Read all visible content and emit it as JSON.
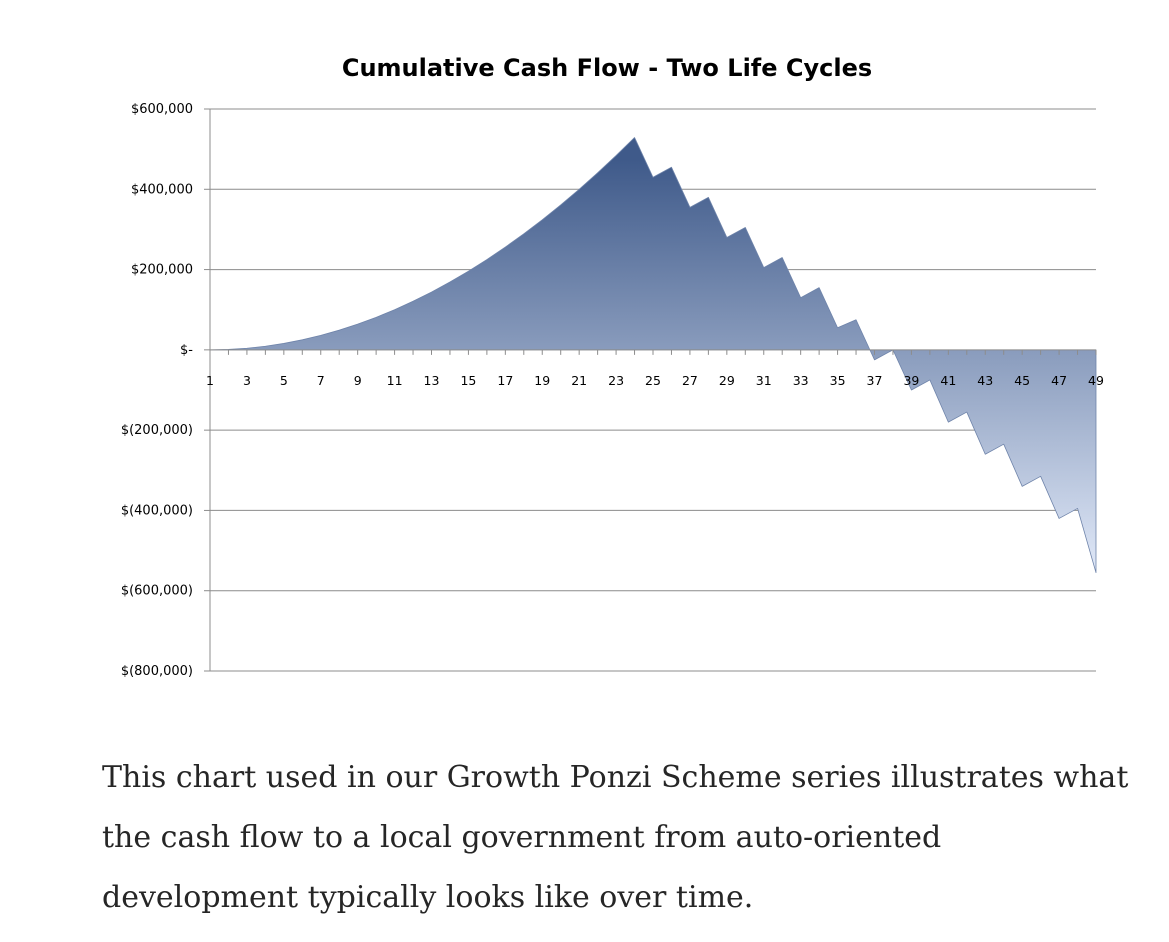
{
  "chart_data": {
    "type": "area",
    "title": "Cumulative Cash Flow - Two Life Cycles",
    "xlabel": "",
    "ylabel": "",
    "x": [
      1,
      2,
      3,
      4,
      5,
      6,
      7,
      8,
      9,
      10,
      11,
      12,
      13,
      14,
      15,
      16,
      17,
      18,
      19,
      20,
      21,
      22,
      23,
      24,
      25,
      26,
      27,
      28,
      29,
      30,
      31,
      32,
      33,
      34,
      35,
      36,
      37,
      38,
      39,
      40,
      41,
      42,
      43,
      44,
      45,
      46,
      47,
      48,
      49
    ],
    "series": [
      {
        "values": [
          0,
          1000,
          4000,
          9000,
          16000,
          25000,
          36000,
          49000,
          64000,
          81000,
          100000,
          121000,
          144000,
          169000,
          196000,
          225000,
          256000,
          289000,
          324000,
          361000,
          400000,
          441000,
          484000,
          529000,
          430000,
          455000,
          355000,
          380000,
          280000,
          305000,
          205000,
          230000,
          130000,
          155000,
          55000,
          75000,
          -25000,
          0,
          -100000,
          -75000,
          -180000,
          -155000,
          -260000,
          -235000,
          -340000,
          -315000,
          -420000,
          -395000,
          -555000
        ]
      }
    ],
    "x_tick_labels": [
      "1",
      "3",
      "5",
      "7",
      "9",
      "11",
      "13",
      "15",
      "17",
      "19",
      "21",
      "23",
      "25",
      "27",
      "29",
      "31",
      "33",
      "35",
      "37",
      "39",
      "41",
      "43",
      "45",
      "47",
      "49"
    ],
    "y_ticks": [
      600000,
      400000,
      200000,
      0,
      -200000,
      -400000,
      -600000,
      -800000
    ],
    "y_tick_labels": [
      "$600,000",
      "$400,000",
      "$200,000",
      "$-",
      "$(200,000)",
      "$(400,000)",
      "$(600,000)",
      "$(800,000)"
    ],
    "ylim": [
      -800000,
      600000
    ],
    "xlim": [
      1,
      49
    ],
    "grid": true,
    "legend": "none",
    "colors": {
      "fill_dark": "#3f5a8a",
      "fill_light": "#e3ebfa",
      "gridline": "#8c8c8c",
      "axis": "#8c8c8c"
    }
  },
  "caption": "This chart used in our Growth Ponzi Scheme series illustrates what the cash flow to a local government from auto-oriented development typically looks like over time."
}
